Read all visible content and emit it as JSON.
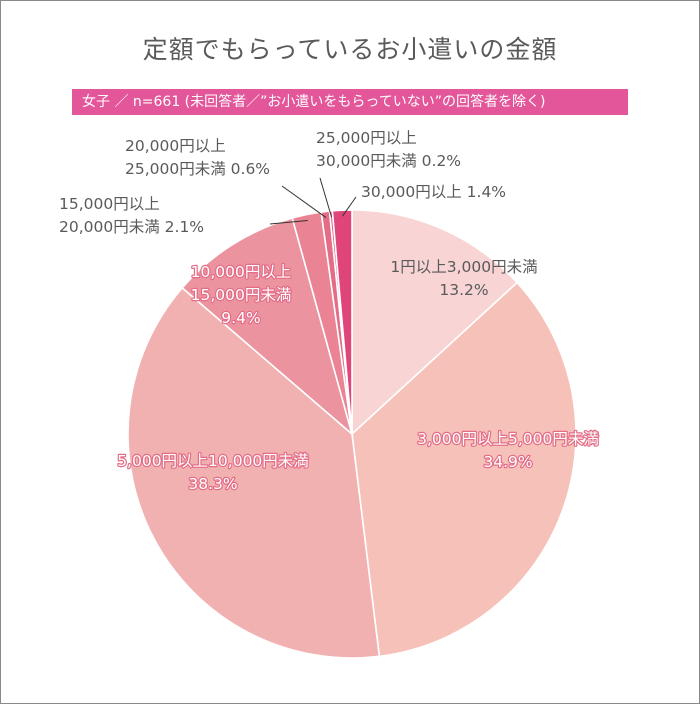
{
  "chart_data": {
    "type": "pie",
    "title": "定額でもらっているお小遣いの金額",
    "subtitle": "女子 ／ n=661 (未回答者／”お小遣いをもらっていない”の回答者を除く)",
    "slices": [
      {
        "label_lines": [
          "1円以上3,000円未満",
          "13.2%"
        ],
        "value": 13.2,
        "color": "#f8d4d4"
      },
      {
        "label_lines": [
          "3,000円以上5,000円未満",
          "34.9%"
        ],
        "value": 34.9,
        "color": "#f6c1b8"
      },
      {
        "label_lines": [
          "5,000円以上10,000円未満",
          "38.3%"
        ],
        "value": 38.3,
        "color": "#f2b1b1"
      },
      {
        "label_lines": [
          "10,000円以上",
          "15,000円未満",
          "9.4%"
        ],
        "value": 9.4,
        "color": "#ec93a0"
      },
      {
        "label_lines": [
          "15,000円以上",
          "20,000円未満 2.1%"
        ],
        "value": 2.1,
        "color": "#ea8494"
      },
      {
        "label_lines": [
          "20,000円以上",
          "25,000円未満 0.6%"
        ],
        "value": 0.6,
        "color": "#e46c86"
      },
      {
        "label_lines": [
          "25,000円以上",
          "30,000円未満 0.2%"
        ],
        "value": 0.2,
        "color": "#df5c7c"
      },
      {
        "label_lines": [
          "30,000円以上 1.4%"
        ],
        "value": 1.4,
        "color": "#e0457a"
      }
    ]
  }
}
